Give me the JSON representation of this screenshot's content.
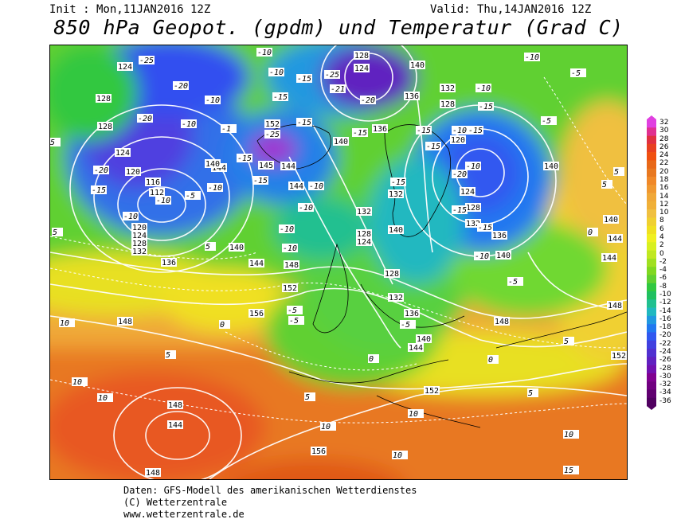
{
  "header": {
    "init": "Init : Mon,11JAN2016 12Z",
    "valid": "Valid: Thu,14JAN2016 12Z",
    "title": "850 hPa Geopot. (gpdm) und Temperatur (Grad C)"
  },
  "footer": {
    "line1": "Daten: GFS-Modell des amerikanischen Wetterdienstes",
    "line2": "(C) Wetterzentrale",
    "line3": "www.wetterzentrale.de"
  },
  "colorbar": {
    "values": [
      "32",
      "30",
      "28",
      "26",
      "24",
      "22",
      "20",
      "18",
      "16",
      "14",
      "12",
      "10",
      "8",
      "6",
      "4",
      "2",
      "0",
      "-2",
      "-4",
      "-6",
      "-8",
      "-10",
      "-12",
      "-14",
      "-16",
      "-18",
      "-20",
      "-22",
      "-24",
      "-26",
      "-28",
      "-30",
      "-32",
      "-34",
      "-36"
    ],
    "colors": [
      "#e040e0",
      "#e03090",
      "#e03040",
      "#e84020",
      "#f05010",
      "#e86818",
      "#e87820",
      "#f08828",
      "#f09830",
      "#f0a838",
      "#f0b038",
      "#f0c040",
      "#f0d030",
      "#f0e020",
      "#f0f020",
      "#d8f020",
      "#c0e820",
      "#a0e020",
      "#80d820",
      "#60d030",
      "#30c840",
      "#20c060",
      "#20c090",
      "#20b8c0",
      "#2098e0",
      "#2078f0",
      "#3058f0",
      "#4040e0",
      "#5030d0",
      "#6020c0",
      "#7010b0",
      "#800090",
      "#700080",
      "#600070",
      "#500060"
    ]
  },
  "map_labels": {
    "geopotential": [
      "124",
      "128",
      "128",
      "124",
      "120",
      "116",
      "112",
      "120",
      "124",
      "128",
      "132",
      "136",
      "140",
      "144",
      "148",
      "152",
      "156",
      "148",
      "144",
      "148",
      "152",
      "156",
      "148",
      "128",
      "124",
      "136",
      "140",
      "136",
      "132",
      "128",
      "120",
      "124",
      "128",
      "132",
      "136",
      "140",
      "140",
      "144",
      "148",
      "152",
      "132",
      "128",
      "124",
      "128",
      "132",
      "136",
      "140",
      "144",
      "148",
      "152",
      "136",
      "140",
      "144",
      "132",
      "128",
      "144",
      "140",
      "144",
      "148",
      "152",
      "140",
      "144",
      "148"
    ],
    "temperature": [
      "-25",
      "-20",
      "-20",
      "-10",
      "-5",
      "-20",
      "-15",
      "-10",
      "-5",
      "-10",
      "-15",
      "-25",
      "-21",
      "-20",
      "-15",
      "-10",
      "-15",
      "-20",
      "-25",
      "-15",
      "-10",
      "-5",
      "-10",
      "-15",
      "-20",
      "-15",
      "-10",
      "-5",
      "-15",
      "-20",
      "-15",
      "-10",
      "-5",
      "-15",
      "-10",
      "-5",
      "0",
      "5",
      "10",
      "5",
      "0",
      "-5",
      "5",
      "10",
      "15",
      "10",
      "5",
      "0",
      "-5",
      "-10",
      "-5",
      "0",
      "5",
      "10",
      "15",
      "10",
      "5"
    ]
  }
}
